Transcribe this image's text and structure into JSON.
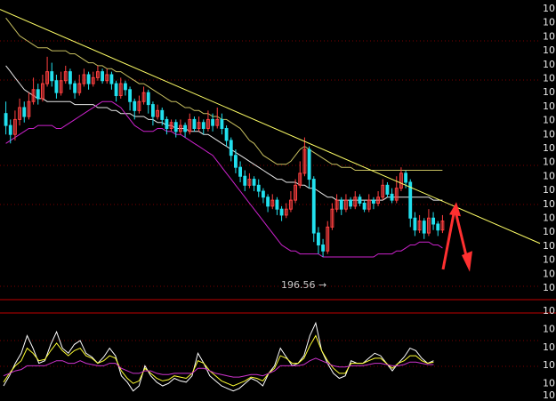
{
  "colors": {
    "background": "#000000",
    "grid": "#7a0000",
    "divider": "#c00000",
    "bullish": "#ff4040",
    "bearish": "#22e0ee",
    "trendline": "#ffff66",
    "bollinger_upper": "#c8c060",
    "bollinger_middle": "#e8e8e8",
    "bollinger_lower": "#cc22cc",
    "indicator_white": "#ffffff",
    "indicator_yellow": "#ffff33",
    "indicator_magenta": "#cc33cc",
    "arrow": "#ff3030",
    "axis_text": "#e8e8e8"
  },
  "chart_data": [
    {
      "type": "candlestick",
      "panel": "price",
      "title": "",
      "annotation": {
        "text": "196.56",
        "arrow": "→"
      },
      "y_axis": {
        "position": "right",
        "tick_labels": [
          "10",
          "10",
          "10",
          "10",
          "10",
          "10",
          "10",
          "10",
          "10",
          "10",
          "10",
          "10",
          "10",
          "10",
          "10",
          "10",
          "10",
          "10",
          "10",
          "10",
          "10"
        ]
      },
      "grid": true,
      "candles": [
        {
          "o": 62,
          "c": 58,
          "h": 66,
          "l": 55
        },
        {
          "o": 58,
          "c": 55,
          "h": 60,
          "l": 52
        },
        {
          "o": 55,
          "c": 60,
          "h": 63,
          "l": 53
        },
        {
          "o": 60,
          "c": 64,
          "h": 67,
          "l": 58
        },
        {
          "o": 64,
          "c": 61,
          "h": 66,
          "l": 59
        },
        {
          "o": 61,
          "c": 66,
          "h": 69,
          "l": 60
        },
        {
          "o": 66,
          "c": 70,
          "h": 74,
          "l": 65
        },
        {
          "o": 70,
          "c": 67,
          "h": 72,
          "l": 65
        },
        {
          "o": 67,
          "c": 72,
          "h": 75,
          "l": 66
        },
        {
          "o": 72,
          "c": 76,
          "h": 81,
          "l": 71
        },
        {
          "o": 76,
          "c": 73,
          "h": 79,
          "l": 71
        },
        {
          "o": 73,
          "c": 69,
          "h": 75,
          "l": 67
        },
        {
          "o": 69,
          "c": 73,
          "h": 76,
          "l": 68
        },
        {
          "o": 73,
          "c": 76,
          "h": 78,
          "l": 72
        },
        {
          "o": 76,
          "c": 72,
          "h": 77,
          "l": 70
        },
        {
          "o": 72,
          "c": 69,
          "h": 73,
          "l": 67
        },
        {
          "o": 69,
          "c": 72,
          "h": 75,
          "l": 68
        },
        {
          "o": 72,
          "c": 75,
          "h": 77,
          "l": 71
        },
        {
          "o": 75,
          "c": 72,
          "h": 76,
          "l": 70
        },
        {
          "o": 72,
          "c": 74,
          "h": 76,
          "l": 71
        },
        {
          "o": 74,
          "c": 76,
          "h": 78,
          "l": 73
        },
        {
          "o": 76,
          "c": 73,
          "h": 77,
          "l": 72
        },
        {
          "o": 73,
          "c": 75,
          "h": 77,
          "l": 72
        },
        {
          "o": 75,
          "c": 72,
          "h": 76,
          "l": 70
        },
        {
          "o": 72,
          "c": 68,
          "h": 73,
          "l": 66
        },
        {
          "o": 68,
          "c": 72,
          "h": 74,
          "l": 67
        },
        {
          "o": 72,
          "c": 70,
          "h": 73,
          "l": 68
        },
        {
          "o": 70,
          "c": 66,
          "h": 71,
          "l": 63
        },
        {
          "o": 66,
          "c": 63,
          "h": 67,
          "l": 60
        },
        {
          "o": 63,
          "c": 66,
          "h": 68,
          "l": 62
        },
        {
          "o": 66,
          "c": 69,
          "h": 71,
          "l": 65
        },
        {
          "o": 69,
          "c": 65,
          "h": 70,
          "l": 62
        },
        {
          "o": 65,
          "c": 61,
          "h": 66,
          "l": 58
        },
        {
          "o": 61,
          "c": 63,
          "h": 65,
          "l": 60
        },
        {
          "o": 63,
          "c": 60,
          "h": 64,
          "l": 58
        },
        {
          "o": 60,
          "c": 57,
          "h": 61,
          "l": 55
        },
        {
          "o": 57,
          "c": 59,
          "h": 60,
          "l": 56
        },
        {
          "o": 59,
          "c": 56,
          "h": 60,
          "l": 54
        },
        {
          "o": 56,
          "c": 58,
          "h": 60,
          "l": 55
        },
        {
          "o": 58,
          "c": 56,
          "h": 59,
          "l": 54
        },
        {
          "o": 56,
          "c": 60,
          "h": 62,
          "l": 55
        },
        {
          "o": 60,
          "c": 57,
          "h": 61,
          "l": 56
        },
        {
          "o": 57,
          "c": 59,
          "h": 61,
          "l": 56
        },
        {
          "o": 59,
          "c": 57,
          "h": 60,
          "l": 55
        },
        {
          "o": 57,
          "c": 60,
          "h": 63,
          "l": 56
        },
        {
          "o": 60,
          "c": 58,
          "h": 62,
          "l": 56
        },
        {
          "o": 58,
          "c": 60,
          "h": 64,
          "l": 57
        },
        {
          "o": 60,
          "c": 57,
          "h": 62,
          "l": 55
        },
        {
          "o": 57,
          "c": 53,
          "h": 58,
          "l": 51
        },
        {
          "o": 53,
          "c": 48,
          "h": 54,
          "l": 46
        },
        {
          "o": 48,
          "c": 44,
          "h": 50,
          "l": 42
        },
        {
          "o": 44,
          "c": 41,
          "h": 46,
          "l": 39
        },
        {
          "o": 41,
          "c": 38,
          "h": 43,
          "l": 36
        },
        {
          "o": 38,
          "c": 40,
          "h": 42,
          "l": 37
        },
        {
          "o": 40,
          "c": 38,
          "h": 41,
          "l": 36
        },
        {
          "o": 38,
          "c": 36,
          "h": 40,
          "l": 34
        },
        {
          "o": 36,
          "c": 34,
          "h": 37,
          "l": 32
        },
        {
          "o": 34,
          "c": 31,
          "h": 35,
          "l": 29
        },
        {
          "o": 31,
          "c": 33,
          "h": 35,
          "l": 30
        },
        {
          "o": 33,
          "c": 30,
          "h": 34,
          "l": 28
        },
        {
          "o": 30,
          "c": 28,
          "h": 31,
          "l": 26
        },
        {
          "o": 28,
          "c": 30,
          "h": 32,
          "l": 27
        },
        {
          "o": 30,
          "c": 33,
          "h": 36,
          "l": 29
        },
        {
          "o": 33,
          "c": 38,
          "h": 40,
          "l": 32
        },
        {
          "o": 38,
          "c": 42,
          "h": 46,
          "l": 37
        },
        {
          "o": 42,
          "c": 50,
          "h": 54,
          "l": 41
        },
        {
          "o": 50,
          "c": 40,
          "h": 51,
          "l": 37
        },
        {
          "o": 40,
          "c": 22,
          "h": 41,
          "l": 19
        },
        {
          "o": 22,
          "c": 18,
          "h": 24,
          "l": 15
        },
        {
          "o": 18,
          "c": 16,
          "h": 20,
          "l": 14
        },
        {
          "o": 16,
          "c": 24,
          "h": 26,
          "l": 15
        },
        {
          "o": 24,
          "c": 30,
          "h": 32,
          "l": 23
        },
        {
          "o": 30,
          "c": 33,
          "h": 35,
          "l": 29
        },
        {
          "o": 33,
          "c": 30,
          "h": 34,
          "l": 28
        },
        {
          "o": 30,
          "c": 33,
          "h": 35,
          "l": 29
        },
        {
          "o": 33,
          "c": 31,
          "h": 34,
          "l": 30
        },
        {
          "o": 31,
          "c": 34,
          "h": 36,
          "l": 30
        },
        {
          "o": 34,
          "c": 32,
          "h": 35,
          "l": 31
        },
        {
          "o": 32,
          "c": 30,
          "h": 33,
          "l": 29
        },
        {
          "o": 30,
          "c": 33,
          "h": 35,
          "l": 29
        },
        {
          "o": 33,
          "c": 32,
          "h": 34,
          "l": 30
        },
        {
          "o": 32,
          "c": 34,
          "h": 36,
          "l": 31
        },
        {
          "o": 34,
          "c": 38,
          "h": 40,
          "l": 33
        },
        {
          "o": 38,
          "c": 35,
          "h": 39,
          "l": 34
        },
        {
          "o": 35,
          "c": 33,
          "h": 37,
          "l": 32
        },
        {
          "o": 33,
          "c": 37,
          "h": 41,
          "l": 32
        },
        {
          "o": 37,
          "c": 42,
          "h": 44,
          "l": 36
        },
        {
          "o": 42,
          "c": 39,
          "h": 43,
          "l": 37
        },
        {
          "o": 39,
          "c": 27,
          "h": 40,
          "l": 24
        },
        {
          "o": 27,
          "c": 23,
          "h": 29,
          "l": 21
        },
        {
          "o": 23,
          "c": 26,
          "h": 28,
          "l": 22
        },
        {
          "o": 26,
          "c": 22,
          "h": 27,
          "l": 20
        },
        {
          "o": 22,
          "c": 27,
          "h": 30,
          "l": 21
        },
        {
          "o": 27,
          "c": 25,
          "h": 29,
          "l": 23
        },
        {
          "o": 25,
          "c": 23,
          "h": 26,
          "l": 21
        },
        {
          "o": 23,
          "c": 26,
          "h": 28,
          "l": 22
        }
      ],
      "bollinger": {
        "upper": [
          94,
          92,
          90,
          88,
          87,
          86,
          85,
          84,
          84,
          84,
          83,
          83,
          83,
          83,
          82,
          82,
          81,
          80,
          79,
          79,
          78,
          78,
          77,
          77,
          76,
          76,
          75,
          74,
          73,
          72,
          72,
          71,
          70,
          69,
          68,
          67,
          66,
          66,
          65,
          64,
          64,
          63,
          63,
          62,
          62,
          61,
          61,
          60,
          60,
          59,
          58,
          57,
          55,
          53,
          52,
          50,
          48,
          47,
          46,
          45,
          45,
          45,
          46,
          48,
          50,
          51,
          50,
          49,
          48,
          47,
          46,
          45,
          45,
          44,
          44,
          44,
          43,
          43,
          43,
          43,
          43,
          43,
          43,
          43,
          43,
          43,
          43,
          43,
          43,
          43,
          43,
          43,
          43,
          43,
          43,
          43
        ],
        "middle": [
          78,
          76,
          74,
          72,
          70,
          69,
          68,
          67,
          67,
          66,
          66,
          66,
          66,
          66,
          66,
          65,
          65,
          65,
          65,
          65,
          64,
          64,
          64,
          63,
          63,
          62,
          62,
          62,
          61,
          61,
          61,
          60,
          60,
          59,
          59,
          58,
          58,
          57,
          57,
          57,
          56,
          56,
          56,
          55,
          55,
          54,
          53,
          52,
          51,
          50,
          49,
          48,
          47,
          46,
          45,
          44,
          43,
          42,
          41,
          40,
          40,
          39,
          39,
          39,
          38,
          38,
          37,
          37,
          36,
          35,
          34,
          34,
          33,
          33,
          33,
          33,
          33,
          33,
          33,
          33,
          33,
          33,
          33,
          34,
          34,
          34,
          34,
          34,
          34,
          34,
          34,
          34,
          34,
          33,
          33,
          33
        ],
        "lower": [
          52,
          53,
          54,
          55,
          56,
          57,
          57,
          58,
          58,
          58,
          58,
          57,
          57,
          58,
          59,
          60,
          61,
          62,
          63,
          64,
          65,
          66,
          66,
          66,
          65,
          64,
          62,
          60,
          58,
          57,
          56,
          56,
          56,
          57,
          57,
          56,
          56,
          55,
          55,
          54,
          53,
          52,
          51,
          50,
          49,
          48,
          46,
          44,
          42,
          40,
          38,
          36,
          34,
          32,
          30,
          28,
          26,
          24,
          22,
          20,
          18,
          17,
          16,
          16,
          15,
          15,
          15,
          15,
          15,
          14,
          14,
          14,
          14,
          14,
          14,
          14,
          14,
          14,
          14,
          14,
          14,
          15,
          15,
          15,
          15,
          16,
          16,
          17,
          18,
          18,
          19,
          19,
          19,
          18,
          18,
          17
        ]
      },
      "trendline": {
        "from": {
          "x": 0,
          "y": 96
        },
        "to": {
          "x": 99,
          "y": 30
        }
      },
      "arrows": [
        "up",
        "down"
      ]
    },
    {
      "type": "line",
      "panel": "indicator",
      "title": "",
      "y_axis": {
        "position": "right",
        "tick_labels": [
          "10",
          "10",
          "10",
          "10",
          "10",
          "10"
        ]
      },
      "series": [
        {
          "color_key": "indicator_white",
          "values": [
            12,
            20,
            30,
            38,
            52,
            42,
            30,
            32,
            45,
            55,
            42,
            38,
            45,
            48,
            38,
            35,
            30,
            35,
            42,
            36,
            20,
            15,
            8,
            12,
            28,
            20,
            15,
            12,
            14,
            18,
            16,
            15,
            20,
            38,
            30,
            20,
            16,
            12,
            10,
            8,
            10,
            14,
            18,
            16,
            12,
            22,
            28,
            42,
            35,
            28,
            30,
            36,
            52,
            62,
            40,
            30,
            22,
            18,
            20,
            32,
            30,
            30,
            34,
            38,
            36,
            30,
            24,
            30,
            35,
            42,
            40,
            34,
            30,
            32
          ]
        },
        {
          "color_key": "indicator_yellow",
          "values": [
            15,
            22,
            28,
            32,
            42,
            38,
            32,
            33,
            40,
            46,
            40,
            36,
            40,
            42,
            36,
            34,
            30,
            32,
            36,
            34,
            24,
            18,
            14,
            16,
            26,
            22,
            18,
            16,
            17,
            20,
            19,
            18,
            22,
            32,
            30,
            24,
            20,
            16,
            14,
            12,
            14,
            16,
            19,
            18,
            16,
            22,
            26,
            36,
            34,
            30,
            30,
            34,
            44,
            52,
            40,
            32,
            26,
            22,
            22,
            30,
            30,
            30,
            32,
            34,
            34,
            30,
            26,
            30,
            32,
            36,
            36,
            32,
            30,
            31
          ]
        },
        {
          "color_key": "indicator_magenta",
          "values": [
            20,
            22,
            24,
            25,
            28,
            28,
            28,
            28,
            30,
            32,
            32,
            30,
            30,
            32,
            30,
            29,
            28,
            28,
            30,
            30,
            26,
            24,
            22,
            22,
            24,
            24,
            22,
            21,
            21,
            22,
            22,
            22,
            22,
            26,
            26,
            24,
            22,
            21,
            20,
            19,
            19,
            20,
            21,
            21,
            20,
            22,
            24,
            28,
            28,
            28,
            28,
            29,
            32,
            34,
            32,
            30,
            28,
            27,
            27,
            28,
            28,
            28,
            29,
            30,
            30,
            29,
            28,
            28,
            29,
            31,
            31,
            30,
            29,
            29
          ]
        }
      ]
    }
  ]
}
